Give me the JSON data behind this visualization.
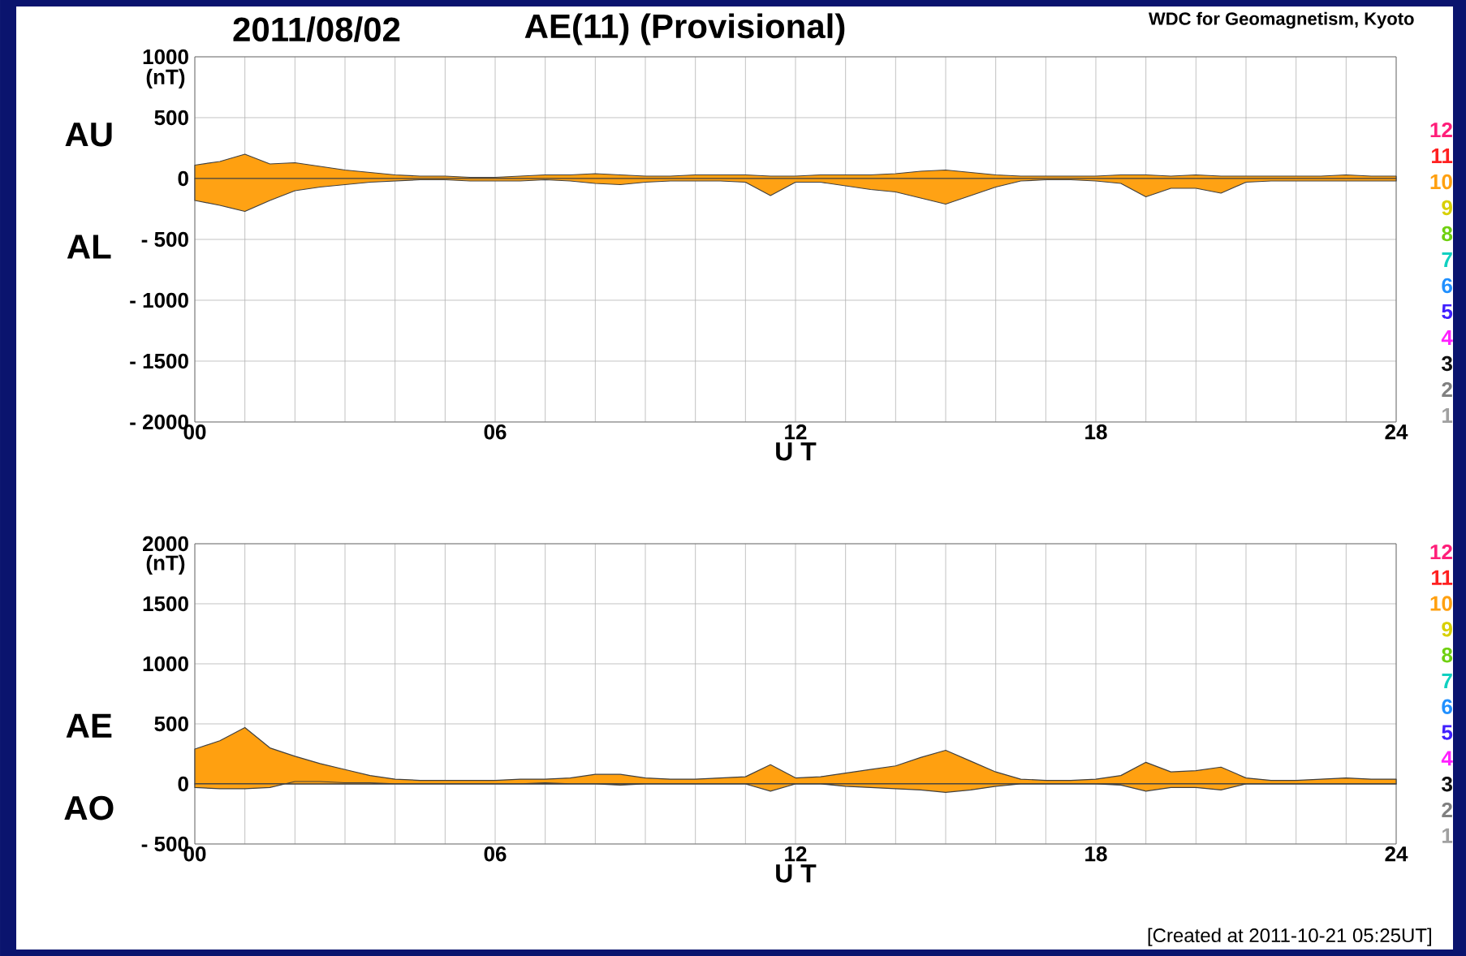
{
  "chart_data": [
    {
      "type": "area",
      "title": "2011/08/02",
      "subtitle": "AE(11) (Provisional)",
      "annotations": [
        "WDC for Geomagnetism, Kyoto",
        "12",
        "11",
        "10",
        "9",
        "8",
        "7",
        "6",
        "5",
        "4",
        "3",
        "2",
        "1"
      ],
      "xlabel": "U T",
      "ylabel": "(nT)",
      "x": [
        0,
        0.5,
        1,
        1.5,
        2,
        2.5,
        3,
        3.5,
        4,
        4.5,
        5,
        5.5,
        6,
        6.5,
        7,
        7.5,
        8,
        8.5,
        9,
        9.5,
        10,
        10.5,
        11,
        11.5,
        12,
        12.5,
        13,
        13.5,
        14,
        14.5,
        15,
        15.5,
        16,
        16.5,
        17,
        17.5,
        18,
        18.5,
        19,
        19.5,
        20,
        20.5,
        21,
        21.5,
        22,
        22.5,
        23,
        23.5,
        24
      ],
      "series": [
        {
          "name": "AU",
          "color": "#ffa010",
          "values": [
            110,
            140,
            200,
            120,
            130,
            100,
            70,
            50,
            30,
            20,
            20,
            10,
            10,
            20,
            30,
            30,
            40,
            30,
            20,
            20,
            30,
            30,
            30,
            20,
            20,
            30,
            30,
            30,
            40,
            60,
            70,
            50,
            30,
            20,
            20,
            20,
            20,
            30,
            30,
            20,
            30,
            20,
            20,
            20,
            20,
            20,
            30,
            20,
            20
          ]
        },
        {
          "name": "AL",
          "color": "#ffa214",
          "values": [
            -180,
            -220,
            -270,
            -180,
            -100,
            -70,
            -50,
            -30,
            -20,
            -10,
            -10,
            -20,
            -20,
            -20,
            -10,
            -20,
            -40,
            -50,
            -30,
            -20,
            -20,
            -20,
            -30,
            -140,
            -30,
            -30,
            -60,
            -90,
            -110,
            -160,
            -210,
            -140,
            -70,
            -20,
            -10,
            -10,
            -20,
            -40,
            -150,
            -80,
            -80,
            -120,
            -30,
            -20,
            -20,
            -20,
            -20,
            -20,
            -20
          ]
        }
      ],
      "xlim": [
        0,
        24
      ],
      "ylim": [
        -2000,
        1000
      ],
      "xticks": [
        {
          "value": 0,
          "label": "00"
        },
        {
          "value": 1,
          "label": null
        },
        {
          "value": 2,
          "label": null
        },
        {
          "value": 3,
          "label": null
        },
        {
          "value": 4,
          "label": null
        },
        {
          "value": 5,
          "label": null
        },
        {
          "value": 6,
          "label": "06"
        },
        {
          "value": 7,
          "label": null
        },
        {
          "value": 8,
          "label": null
        },
        {
          "value": 9,
          "label": null
        },
        {
          "value": 10,
          "label": null
        },
        {
          "value": 11,
          "label": null
        },
        12,
        {
          "value": 13,
          "label": null
        },
        {
          "value": 14,
          "label": null
        },
        {
          "value": 15,
          "label": null
        },
        {
          "value": 16,
          "label": null
        },
        {
          "value": 17,
          "label": null
        },
        18,
        {
          "value": 19,
          "label": null
        },
        {
          "value": 20,
          "label": null
        },
        {
          "value": 21,
          "label": null
        },
        {
          "value": 22,
          "label": null
        },
        {
          "value": 23,
          "label": null
        },
        24
      ],
      "yticks": [
        {
          "value": -2000,
          "label": "- 2000"
        },
        {
          "value": -1500,
          "label": "- 1500"
        },
        {
          "value": -1000,
          "label": "- 1000"
        },
        {
          "value": -500,
          "label": "- 500"
        },
        0,
        500,
        1000
      ],
      "grid": true
    },
    {
      "type": "area",
      "annotations": [
        "[Created at 2011-10-21 05:25UT]",
        "12",
        "11",
        "10",
        "9",
        "8",
        "7",
        "6",
        "5",
        "4",
        "3",
        "2",
        "1"
      ],
      "xlabel": "U T",
      "ylabel": "(nT)",
      "x": [
        0,
        0.5,
        1,
        1.5,
        2,
        2.5,
        3,
        3.5,
        4,
        4.5,
        5,
        5.5,
        6,
        6.5,
        7,
        7.5,
        8,
        8.5,
        9,
        9.5,
        10,
        10.5,
        11,
        11.5,
        12,
        12.5,
        13,
        13.5,
        14,
        14.5,
        15,
        15.5,
        16,
        16.5,
        17,
        17.5,
        18,
        18.5,
        19,
        19.5,
        20,
        20.5,
        21,
        21.5,
        22,
        22.5,
        23,
        23.5,
        24
      ],
      "series": [
        {
          "name": "AE",
          "color": "#ffa010",
          "values": [
            290,
            360,
            470,
            300,
            230,
            170,
            120,
            70,
            40,
            30,
            30,
            30,
            30,
            40,
            40,
            50,
            80,
            80,
            50,
            40,
            40,
            50,
            60,
            160,
            50,
            60,
            90,
            120,
            150,
            220,
            280,
            190,
            100,
            40,
            30,
            30,
            40,
            70,
            180,
            100,
            110,
            140,
            50,
            30,
            30,
            40,
            50,
            40,
            40
          ]
        },
        {
          "name": "AO",
          "color": "#ffa214",
          "values": [
            -30,
            -40,
            -40,
            -30,
            20,
            20,
            10,
            10,
            0,
            0,
            0,
            0,
            0,
            0,
            10,
            0,
            0,
            -10,
            0,
            0,
            0,
            0,
            0,
            -60,
            0,
            0,
            -20,
            -30,
            -40,
            -50,
            -70,
            -50,
            -20,
            0,
            0,
            0,
            0,
            -10,
            -60,
            -30,
            -30,
            -50,
            0,
            0,
            0,
            0,
            0,
            0,
            0
          ]
        }
      ],
      "xlim": [
        0,
        24
      ],
      "ylim": [
        -500,
        2000
      ],
      "xticks": [
        {
          "value": 0,
          "label": "00"
        },
        {
          "value": 1,
          "label": null
        },
        {
          "value": 2,
          "label": null
        },
        {
          "value": 3,
          "label": null
        },
        {
          "value": 4,
          "label": null
        },
        {
          "value": 5,
          "label": null
        },
        {
          "value": 6,
          "label": "06"
        },
        {
          "value": 7,
          "label": null
        },
        {
          "value": 8,
          "label": null
        },
        {
          "value": 9,
          "label": null
        },
        {
          "value": 10,
          "label": null
        },
        {
          "value": 11,
          "label": null
        },
        12,
        {
          "value": 13,
          "label": null
        },
        {
          "value": 14,
          "label": null
        },
        {
          "value": 15,
          "label": null
        },
        {
          "value": 16,
          "label": null
        },
        {
          "value": 17,
          "label": null
        },
        18,
        {
          "value": 19,
          "label": null
        },
        {
          "value": 20,
          "label": null
        },
        {
          "value": 21,
          "label": null
        },
        {
          "value": 22,
          "label": null
        },
        {
          "value": 23,
          "label": null
        },
        24
      ],
      "yticks": [
        {
          "value": -500,
          "label": "- 500"
        },
        0,
        500,
        1000,
        1500,
        2000
      ],
      "grid": true
    }
  ]
}
